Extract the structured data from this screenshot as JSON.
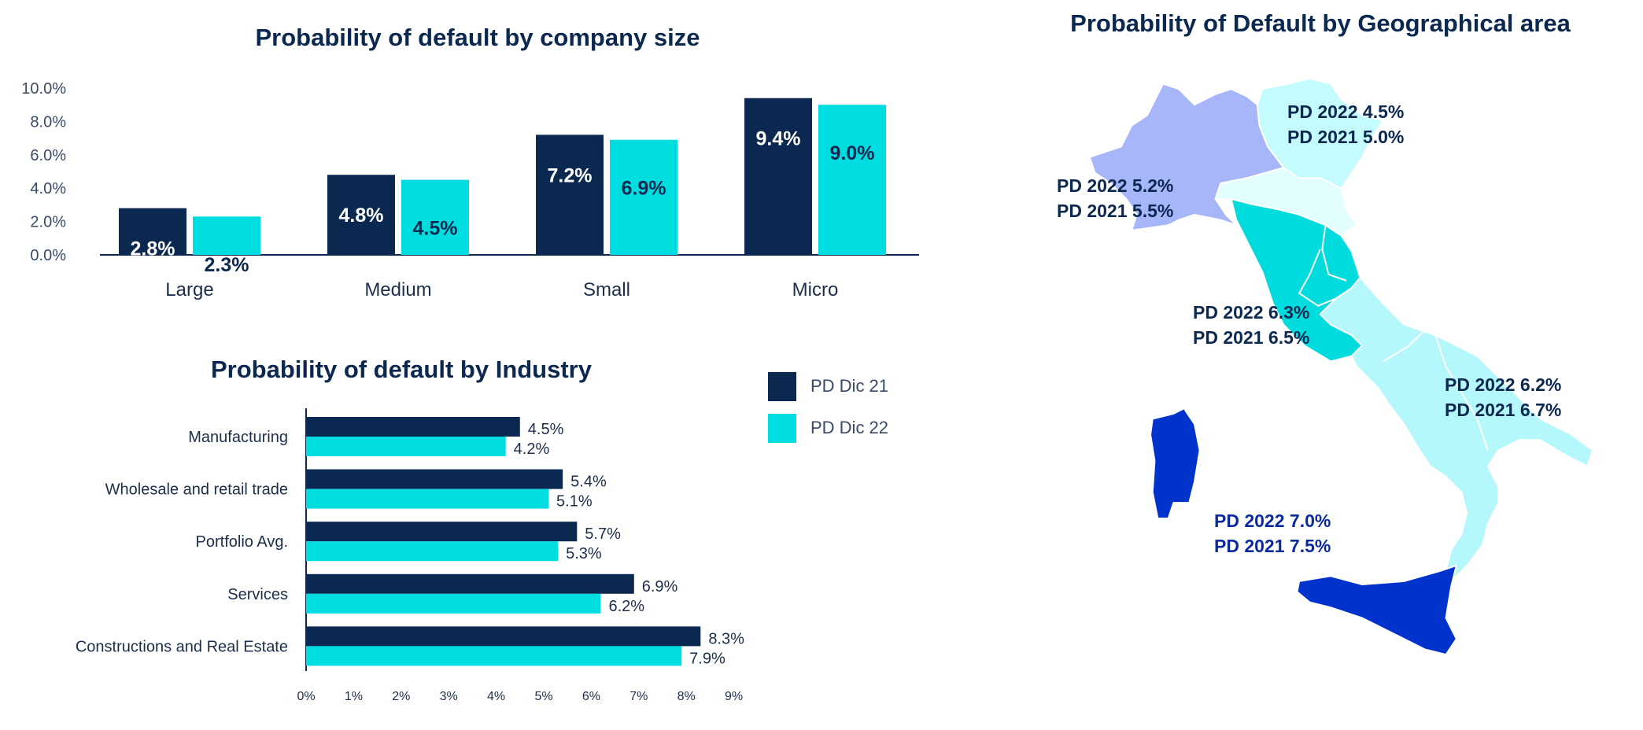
{
  "colors": {
    "dark": "#0b2850",
    "cyan": "#00dde0",
    "nw": "#a6b6f8",
    "ne": "#c4fbfd",
    "emilia": "#e2feff",
    "center": "#00dcdd",
    "south": "#b5f8fb",
    "islands": "#0032cc",
    "island_text": "#0a2aa0"
  },
  "chart_data": [
    {
      "type": "bar",
      "title": "Probability of default by company size",
      "categories": [
        "Large",
        "Medium",
        "Small",
        "Micro"
      ],
      "series": [
        {
          "name": "PD Dic 21",
          "values": [
            2.8,
            4.8,
            7.2,
            9.4
          ],
          "labels": [
            "2.8%",
            "4.8%",
            "7.2%",
            "9.4%"
          ]
        },
        {
          "name": "PD Dic 22",
          "values": [
            2.3,
            4.5,
            6.9,
            9.0
          ],
          "labels": [
            "2.3%",
            "4.5%",
            "6.9%",
            "9.0%"
          ]
        }
      ],
      "yticks": [
        "0.0%",
        "2.0%",
        "4.0%",
        "6.0%",
        "8.0%",
        "10.0%"
      ],
      "ylim": [
        0,
        10
      ],
      "xlabel": "",
      "ylabel": "",
      "grid": false
    },
    {
      "type": "bar",
      "orientation": "horizontal",
      "title": "Probability of default by Industry",
      "categories": [
        "Manufacturing",
        "Wholesale and retail trade",
        "Portfolio Avg.",
        "Services",
        "Constructions and Real Estate"
      ],
      "series": [
        {
          "name": "PD Dic 21",
          "values": [
            4.5,
            5.4,
            5.7,
            6.9,
            8.3
          ],
          "labels": [
            "4.5%",
            "5.4%",
            "5.7%",
            "6.9%",
            "8.3%"
          ]
        },
        {
          "name": "PD Dic 22",
          "values": [
            4.2,
            5.1,
            5.3,
            6.2,
            7.9
          ],
          "labels": [
            "4.2%",
            "5.1%",
            "5.3%",
            "6.2%",
            "7.9%"
          ]
        }
      ],
      "xticks": [
        "0%",
        "1%",
        "2%",
        "3%",
        "4%",
        "5%",
        "6%",
        "7%",
        "8%",
        "9%"
      ],
      "xlim": [
        0,
        9
      ],
      "legend": {
        "placement": "top-right",
        "items": [
          "PD Dic 21",
          "PD Dic 22"
        ]
      },
      "grid": false
    }
  ],
  "map": {
    "title": "Probability of Default by Geographical area",
    "areas": [
      {
        "name": "North-East",
        "pd2022": "PD 2022 4.5%",
        "pd2021": "PD 2021 5.0%"
      },
      {
        "name": "North-West",
        "pd2022": "PD 2022 5.2%",
        "pd2021": "PD 2021 5.5%"
      },
      {
        "name": "Center",
        "pd2022": "PD 2022 6.3%",
        "pd2021": "PD 2021 6.5%"
      },
      {
        "name": "South",
        "pd2022": "PD 2022 6.2%",
        "pd2021": "PD 2021 6.7%"
      },
      {
        "name": "Islands",
        "pd2022": "PD 2022 7.0%",
        "pd2021": "PD 2021 7.5%"
      }
    ]
  }
}
